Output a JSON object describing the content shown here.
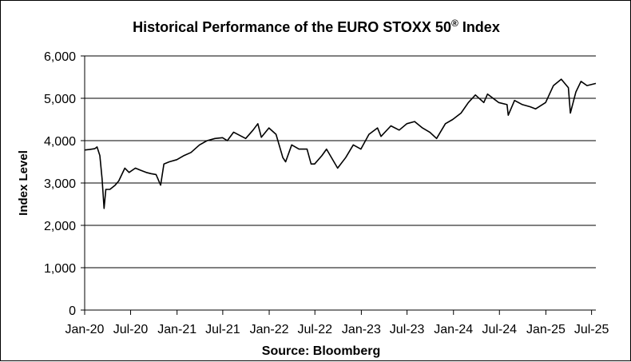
{
  "chart_data": {
    "type": "line",
    "title": "Historical Performance of the EURO STOXX 50® Index",
    "title_main": "Historical Performance of the EURO STOXX 50",
    "title_mark": "®",
    "title_tail": " Index",
    "ylabel": "Index Level",
    "xlabel": "Source: Bloomberg",
    "ylim": [
      0,
      6000
    ],
    "yticks": [
      0,
      1000,
      2000,
      3000,
      4000,
      5000,
      6000
    ],
    "ytick_labels": [
      "0",
      "1,000",
      "2,000",
      "3,000",
      "4,000",
      "5,000",
      "6,000"
    ],
    "xlim": [
      "2020-01-01",
      "2025-07-18"
    ],
    "xticks": [
      "2020-01-01",
      "2020-07-01",
      "2021-01-01",
      "2021-07-01",
      "2022-01-01",
      "2022-07-01",
      "2023-01-01",
      "2023-07-01",
      "2024-01-01",
      "2024-07-01",
      "2025-01-01",
      "2025-07-01"
    ],
    "xtick_labels": [
      "Jan-20",
      "Jul-20",
      "Jan-21",
      "Jul-21",
      "Jan-22",
      "Jul-22",
      "Jan-23",
      "Jul-23",
      "Jan-24",
      "Jul-24",
      "Jan-25",
      "Jul-25"
    ],
    "grid": true,
    "line_color": "#000000",
    "series": [
      {
        "x": [
          "2020-01-02",
          "2020-01-20",
          "2020-02-10",
          "2020-02-19",
          "2020-03-01",
          "2020-03-10",
          "2020-03-18",
          "2020-03-25",
          "2020-04-10",
          "2020-05-01",
          "2020-05-15",
          "2020-06-08",
          "2020-06-25",
          "2020-07-20",
          "2020-08-10",
          "2020-09-01",
          "2020-09-20",
          "2020-10-10",
          "2020-10-28",
          "2020-11-10",
          "2020-12-01",
          "2020-12-31",
          "2021-01-29",
          "2021-02-25",
          "2021-03-31",
          "2021-04-30",
          "2021-05-31",
          "2021-06-30",
          "2021-07-19",
          "2021-08-13",
          "2021-09-30",
          "2021-10-29",
          "2021-11-17",
          "2021-12-01",
          "2021-12-31",
          "2022-01-28",
          "2022-02-24",
          "2022-03-07",
          "2022-03-31",
          "2022-04-29",
          "2022-05-31",
          "2022-06-16",
          "2022-06-30",
          "2022-07-29",
          "2022-08-16",
          "2022-09-29",
          "2022-10-31",
          "2022-11-30",
          "2022-12-30",
          "2023-01-31",
          "2023-03-06",
          "2023-03-20",
          "2023-04-28",
          "2023-05-31",
          "2023-06-30",
          "2023-07-31",
          "2023-08-31",
          "2023-09-29",
          "2023-10-26",
          "2023-11-30",
          "2023-12-29",
          "2024-01-31",
          "2024-02-29",
          "2024-03-28",
          "2024-04-30",
          "2024-05-15",
          "2024-06-28",
          "2024-07-31",
          "2024-08-05",
          "2024-08-30",
          "2024-09-30",
          "2024-10-31",
          "2024-11-21",
          "2024-12-31",
          "2025-01-31",
          "2025-03-03",
          "2025-03-31",
          "2025-04-08",
          "2025-04-30",
          "2025-05-20",
          "2025-06-13",
          "2025-07-18"
        ],
        "values": [
          3780,
          3790,
          3810,
          3850,
          3650,
          3100,
          2400,
          2850,
          2850,
          2950,
          3050,
          3350,
          3250,
          3350,
          3300,
          3250,
          3220,
          3200,
          2950,
          3450,
          3500,
          3550,
          3650,
          3720,
          3900,
          4000,
          4050,
          4070,
          4000,
          4200,
          4050,
          4250,
          4400,
          4080,
          4300,
          4150,
          3600,
          3500,
          3900,
          3800,
          3800,
          3450,
          3450,
          3650,
          3800,
          3350,
          3600,
          3900,
          3800,
          4150,
          4300,
          4100,
          4350,
          4250,
          4400,
          4450,
          4300,
          4200,
          4050,
          4400,
          4500,
          4650,
          4900,
          5080,
          4900,
          5100,
          4900,
          4850,
          4600,
          4950,
          4850,
          4800,
          4750,
          4900,
          5300,
          5450,
          5250,
          4650,
          5150,
          5400,
          5300,
          5350
        ]
      }
    ]
  }
}
